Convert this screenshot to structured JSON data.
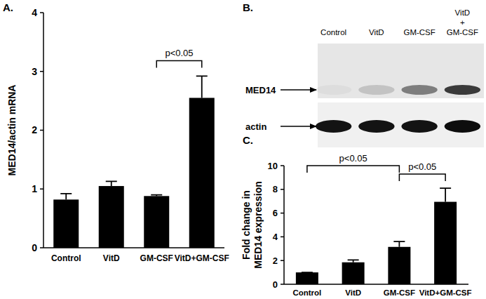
{
  "chart_data": [
    {
      "type": "bar",
      "title": "A.",
      "y_label": "MED14/actin mRNA",
      "categories": [
        "Control",
        "VitD",
        "GM-CSF",
        "VitD+GM-CSF"
      ],
      "values": [
        0.82,
        1.05,
        0.88,
        2.55
      ],
      "errors": [
        0.1,
        0.08,
        0.02,
        0.37
      ],
      "color": "#000000",
      "ylim": [
        0,
        4
      ],
      "yticks": [
        0,
        1,
        2,
        3,
        4
      ],
      "grid": false,
      "annotations": [
        {
          "text": "p<0.05",
          "between": [
            "GM-CSF",
            "VitD+GM-CSF"
          ]
        }
      ]
    },
    {
      "type": "bar",
      "title": "C.",
      "y_label": "Fold change in MED14 expression",
      "categories": [
        "Control",
        "VitD",
        "GM-CSF",
        "VitD+GM-CSF"
      ],
      "values": [
        1.0,
        1.85,
        3.15,
        6.95
      ],
      "errors": [
        0.0,
        0.2,
        0.45,
        1.15
      ],
      "color": "#000000",
      "ylim": [
        0,
        10
      ],
      "yticks": [
        0,
        2,
        4,
        6,
        8,
        10
      ],
      "grid": false,
      "annotations": [
        {
          "text": "p<0.05",
          "between": [
            "Control",
            "GM-CSF"
          ]
        },
        {
          "text": "p<0.05",
          "between": [
            "GM-CSF",
            "VitD+GM-CSF"
          ]
        }
      ]
    }
  ],
  "blot": {
    "label": "B.",
    "lanes": [
      "Control",
      "VitD",
      "GM-CSF",
      "VitD + GM-CSF"
    ],
    "rows": [
      {
        "name": "MED14",
        "bands": [
          0.04,
          0.15,
          0.45,
          0.75
        ]
      },
      {
        "name": "actin",
        "bands": [
          0.92,
          0.92,
          0.92,
          0.95
        ]
      }
    ]
  }
}
